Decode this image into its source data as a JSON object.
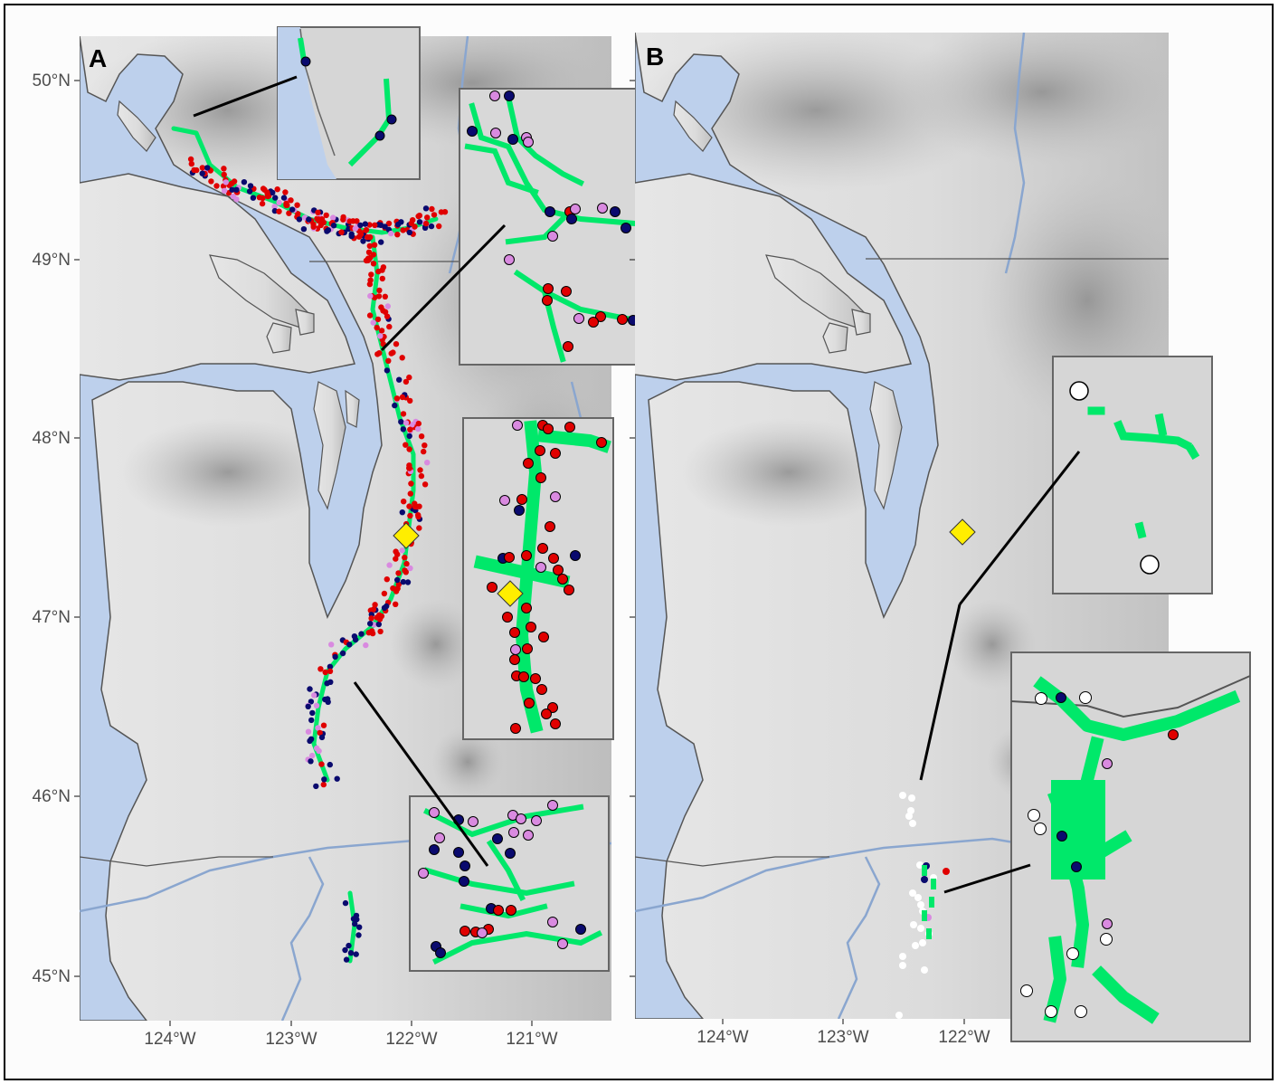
{
  "figure": {
    "panels": [
      {
        "id": "A",
        "label": "A"
      },
      {
        "id": "B",
        "label": "B"
      }
    ],
    "y_axis_labels": [
      "50°N",
      "49°N",
      "48°N",
      "47°N",
      "46°N",
      "45°N"
    ],
    "x_axis_labels_a": [
      "124°W",
      "123°W",
      "122°W",
      "121°W"
    ],
    "x_axis_labels_b": [
      "124°W",
      "123°W",
      "122°W"
    ],
    "legend_colors": {
      "water": "#bdd0ec",
      "land_light": "#e2e2e2",
      "land_dark": "#9a9a9a",
      "habitat": "#00e86a",
      "point_red": "#e00000",
      "point_navy": "#0a0a6e",
      "point_violet": "#d98ae0",
      "point_white": "#ffffff",
      "reference_marker": "#ffee00",
      "river": "#8aa6cf",
      "border": "#555555"
    },
    "icons": {
      "reference_marker": "yellow-diamond-icon"
    }
  }
}
